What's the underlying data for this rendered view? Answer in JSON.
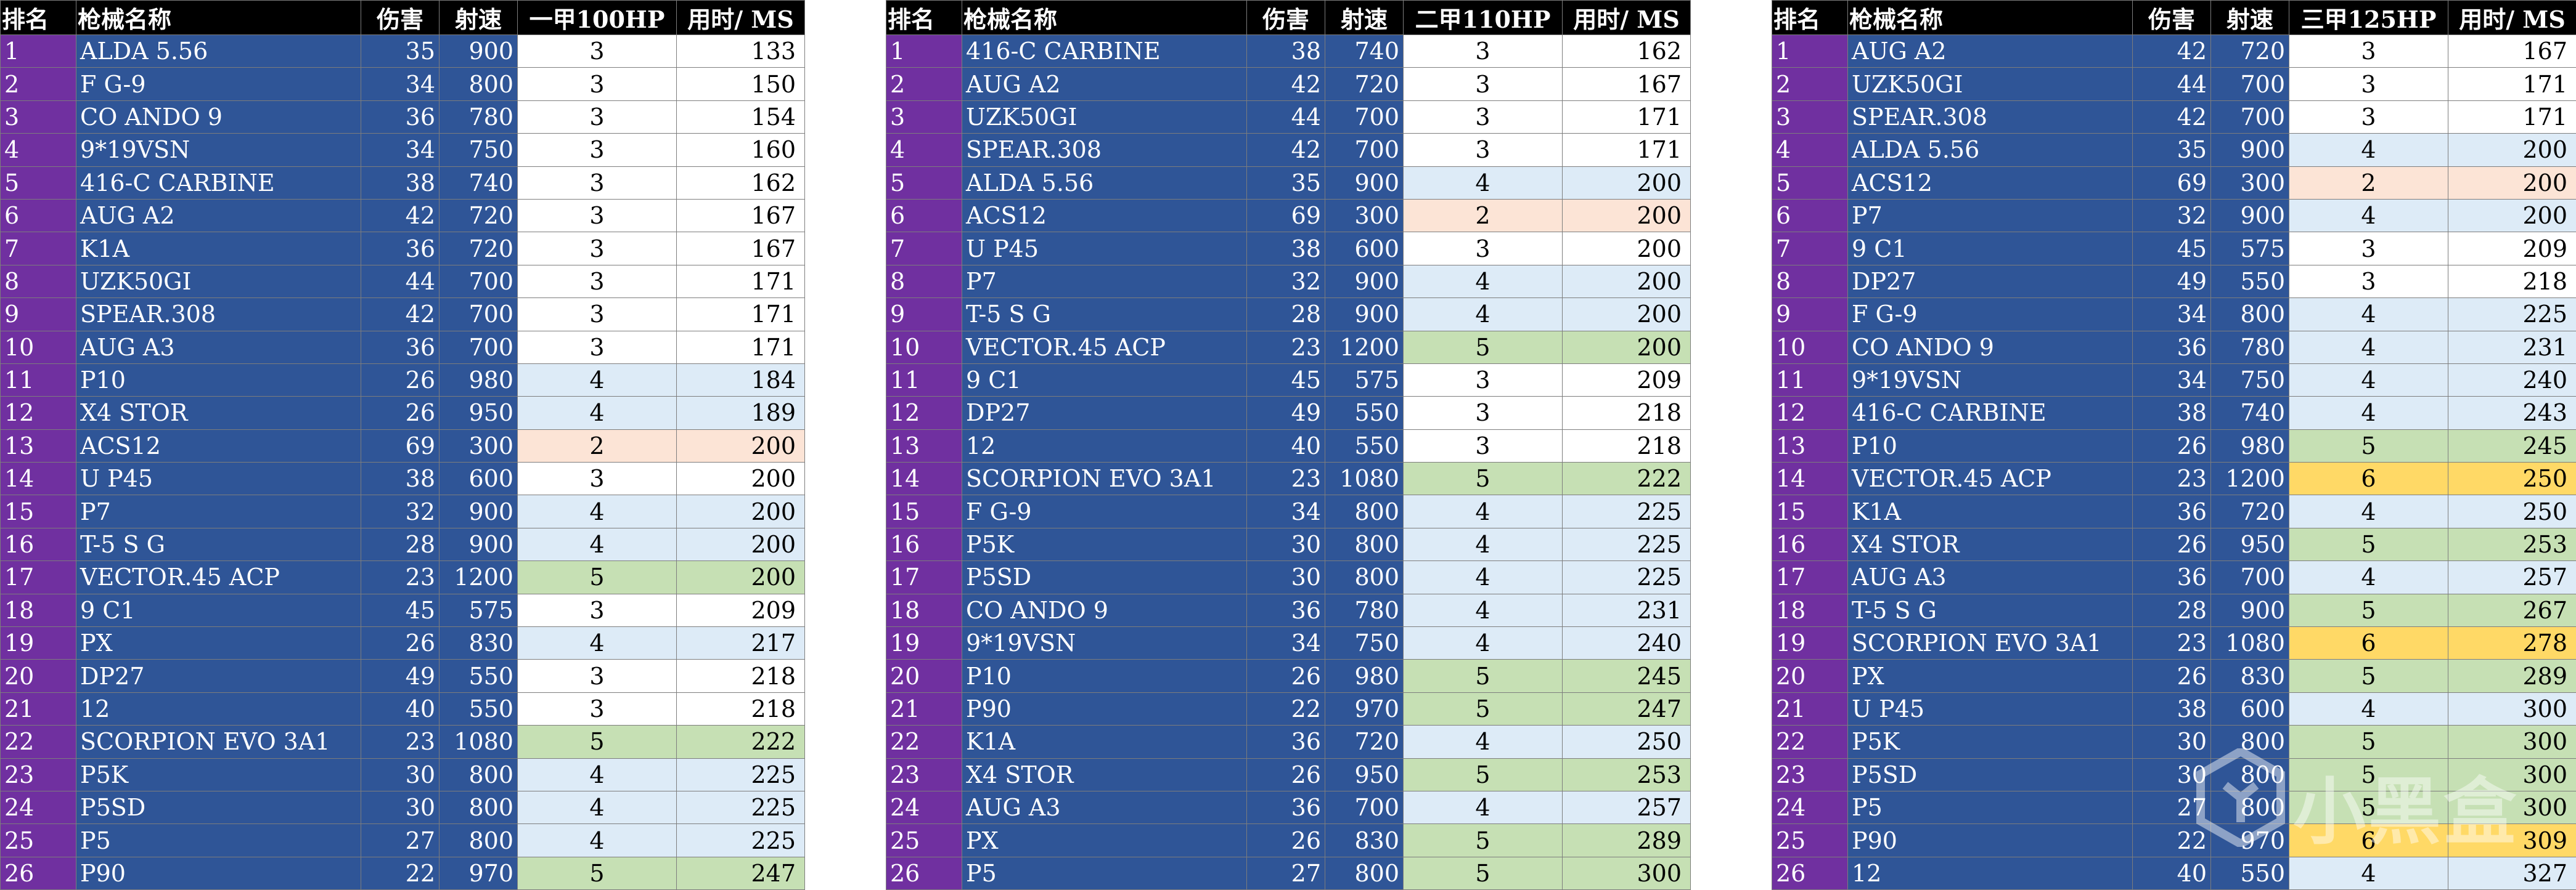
{
  "colors": {
    "header_bg": "#000000",
    "rank_bg": "#7030a0",
    "name_bg": "#2f5597",
    "hl_white": "#ffffff",
    "hl_blue": "#ddebf7",
    "hl_peach": "#fce4d6",
    "hl_green": "#c6e0b4",
    "hl_yellow": "#ffd966"
  },
  "tables": [
    {
      "headers": [
        "排名",
        "枪械名称",
        "伤害",
        "射速",
        "一甲100HP",
        "用时/ MS"
      ],
      "rows": [
        {
          "rank": "1",
          "name": "ALDA 5.56",
          "dmg": "35",
          "rpm": "900",
          "hits": "3",
          "time": "133",
          "hl": "white"
        },
        {
          "rank": "2",
          "name": "F G-9",
          "dmg": "34",
          "rpm": "800",
          "hits": "3",
          "time": "150",
          "hl": "white"
        },
        {
          "rank": "3",
          "name": "CO  ANDO 9",
          "dmg": "36",
          "rpm": "780",
          "hits": "3",
          "time": "154",
          "hl": "white"
        },
        {
          "rank": "4",
          "name": "9*19VSN",
          "dmg": "34",
          "rpm": "750",
          "hits": "3",
          "time": "160",
          "hl": "white"
        },
        {
          "rank": "5",
          "name": "416-C CARBINE",
          "dmg": "38",
          "rpm": "740",
          "hits": "3",
          "time": "162",
          "hl": "white"
        },
        {
          "rank": "6",
          "name": "AUG A2",
          "dmg": "42",
          "rpm": "720",
          "hits": "3",
          "time": "167",
          "hl": "white"
        },
        {
          "rank": "7",
          "name": "K1A",
          "dmg": "36",
          "rpm": "720",
          "hits": "3",
          "time": "167",
          "hl": "white"
        },
        {
          "rank": "8",
          "name": "UZK50GI",
          "dmg": "44",
          "rpm": "700",
          "hits": "3",
          "time": "171",
          "hl": "white"
        },
        {
          "rank": "9",
          "name": "SPEAR.308",
          "dmg": "42",
          "rpm": "700",
          "hits": "3",
          "time": "171",
          "hl": "white"
        },
        {
          "rank": "10",
          "name": "AUG A3",
          "dmg": "36",
          "rpm": "700",
          "hits": "3",
          "time": "171",
          "hl": "white"
        },
        {
          "rank": "11",
          "name": "P10",
          "dmg": "26",
          "rpm": "980",
          "hits": "4",
          "time": "184",
          "hl": "blue"
        },
        {
          "rank": "12",
          "name": " X4 STOR ",
          "dmg": "26",
          "rpm": "950",
          "hits": "4",
          "time": "189",
          "hl": "blue"
        },
        {
          "rank": "13",
          "name": " ACS12",
          "dmg": "69",
          "rpm": "300",
          "hits": "2",
          "time": "200",
          "hl": "peach"
        },
        {
          "rank": "14",
          "name": "U P45",
          "dmg": "38",
          "rpm": "600",
          "hits": "3",
          "time": "200",
          "hl": "white"
        },
        {
          "rank": "15",
          "name": " P7",
          "dmg": "32",
          "rpm": "900",
          "hits": "4",
          "time": "200",
          "hl": "blue"
        },
        {
          "rank": "16",
          "name": "T-5 S G",
          "dmg": "28",
          "rpm": "900",
          "hits": "4",
          "time": "200",
          "hl": "blue"
        },
        {
          "rank": "17",
          "name": "VECTOR.45 ACP",
          "dmg": "23",
          "rpm": "1200",
          "hits": "5",
          "time": "200",
          "hl": "green"
        },
        {
          "rank": "18",
          "name": "9  C1",
          "dmg": "45",
          "rpm": "575",
          "hits": "3",
          "time": "209",
          "hl": "white"
        },
        {
          "rank": "19",
          "name": " PX",
          "dmg": "26",
          "rpm": "830",
          "hits": "4",
          "time": "217",
          "hl": "blue"
        },
        {
          "rank": "20",
          "name": "DP27",
          "dmg": "49",
          "rpm": "550",
          "hits": "3",
          "time": "218",
          "hl": "white"
        },
        {
          "rank": "21",
          "name": " 12",
          "dmg": "40",
          "rpm": "550",
          "hits": "3",
          "time": "218",
          "hl": "white"
        },
        {
          "rank": "22",
          "name": "SCORPION EVO 3A1",
          "dmg": "23",
          "rpm": "1080",
          "hits": "5",
          "time": "222",
          "hl": "green"
        },
        {
          "rank": "23",
          "name": " P5K",
          "dmg": "30",
          "rpm": "800",
          "hits": "4",
          "time": "225",
          "hl": "blue"
        },
        {
          "rank": "24",
          "name": " P5SD",
          "dmg": "30",
          "rpm": "800",
          "hits": "4",
          "time": "225",
          "hl": "blue"
        },
        {
          "rank": "25",
          "name": " P5",
          "dmg": "27",
          "rpm": "800",
          "hits": "4",
          "time": "225",
          "hl": "blue"
        },
        {
          "rank": "26",
          "name": "P90",
          "dmg": "22",
          "rpm": "970",
          "hits": "5",
          "time": "247",
          "hl": "green"
        }
      ]
    },
    {
      "headers": [
        "排名",
        "枪械名称",
        "伤害",
        "射速",
        "二甲110HP",
        "用时/ MS"
      ],
      "rows": [
        {
          "rank": "1",
          "name": "416-C CARBINE",
          "dmg": "38",
          "rpm": "740",
          "hits": "3",
          "time": "162",
          "hl": "white"
        },
        {
          "rank": "2",
          "name": "AUG A2",
          "dmg": "42",
          "rpm": "720",
          "hits": "3",
          "time": "167",
          "hl": "white"
        },
        {
          "rank": "3",
          "name": "UZK50GI",
          "dmg": "44",
          "rpm": "700",
          "hits": "3",
          "time": "171",
          "hl": "white"
        },
        {
          "rank": "4",
          "name": "SPEAR.308",
          "dmg": "42",
          "rpm": "700",
          "hits": "3",
          "time": "171",
          "hl": "white"
        },
        {
          "rank": "5",
          "name": "ALDA 5.56",
          "dmg": "35",
          "rpm": "900",
          "hits": "4",
          "time": "200",
          "hl": "blue"
        },
        {
          "rank": "6",
          "name": "ACS12",
          "dmg": "69",
          "rpm": "300",
          "hits": "2",
          "time": "200",
          "hl": "peach"
        },
        {
          "rank": "7",
          "name": "U P45",
          "dmg": "38",
          "rpm": "600",
          "hits": "3",
          "time": "200",
          "hl": "white"
        },
        {
          "rank": "8",
          "name": " P7",
          "dmg": "32",
          "rpm": "900",
          "hits": "4",
          "time": "200",
          "hl": "blue"
        },
        {
          "rank": "9",
          "name": "T-5 S G",
          "dmg": "28",
          "rpm": "900",
          "hits": "4",
          "time": "200",
          "hl": "blue"
        },
        {
          "rank": "10",
          "name": "VECTOR.45 ACP",
          "dmg": "23",
          "rpm": "1200",
          "hits": "5",
          "time": "200",
          "hl": "green"
        },
        {
          "rank": "11",
          "name": "9  C1",
          "dmg": "45",
          "rpm": "575",
          "hits": "3",
          "time": "209",
          "hl": "white"
        },
        {
          "rank": "12",
          "name": "DP27",
          "dmg": "49",
          "rpm": "550",
          "hits": "3",
          "time": "218",
          "hl": "white"
        },
        {
          "rank": "13",
          "name": " 12",
          "dmg": "40",
          "rpm": "550",
          "hits": "3",
          "time": "218",
          "hl": "white"
        },
        {
          "rank": "14",
          "name": "SCORPION EVO 3A1",
          "dmg": "23",
          "rpm": "1080",
          "hits": "5",
          "time": "222",
          "hl": "green"
        },
        {
          "rank": "15",
          "name": "F G-9",
          "dmg": "34",
          "rpm": "800",
          "hits": "4",
          "time": "225",
          "hl": "blue"
        },
        {
          "rank": "16",
          "name": " P5K",
          "dmg": "30",
          "rpm": "800",
          "hits": "4",
          "time": "225",
          "hl": "blue"
        },
        {
          "rank": "17",
          "name": " P5SD",
          "dmg": "30",
          "rpm": "800",
          "hits": "4",
          "time": "225",
          "hl": "blue"
        },
        {
          "rank": "18",
          "name": "CO  ANDO 9",
          "dmg": "36",
          "rpm": "780",
          "hits": "4",
          "time": "231",
          "hl": "blue"
        },
        {
          "rank": "19",
          "name": "9*19VSN",
          "dmg": "34",
          "rpm": "750",
          "hits": "4",
          "time": "240",
          "hl": "blue"
        },
        {
          "rank": "20",
          "name": "P10",
          "dmg": "26",
          "rpm": "980",
          "hits": "5",
          "time": "245",
          "hl": "green"
        },
        {
          "rank": "21",
          "name": "P90",
          "dmg": "22",
          "rpm": "970",
          "hits": "5",
          "time": "247",
          "hl": "green"
        },
        {
          "rank": "22",
          "name": "K1A",
          "dmg": "36",
          "rpm": "720",
          "hits": "4",
          "time": "250",
          "hl": "blue"
        },
        {
          "rank": "23",
          "name": " X4 STOR ",
          "dmg": "26",
          "rpm": "950",
          "hits": "5",
          "time": "253",
          "hl": "green"
        },
        {
          "rank": "24",
          "name": "AUG A3",
          "dmg": "36",
          "rpm": "700",
          "hits": "4",
          "time": "257",
          "hl": "blue"
        },
        {
          "rank": "25",
          "name": " PX",
          "dmg": "26",
          "rpm": "830",
          "hits": "5",
          "time": "289",
          "hl": "green"
        },
        {
          "rank": "26",
          "name": " P5",
          "dmg": "27",
          "rpm": "800",
          "hits": "5",
          "time": "300",
          "hl": "green"
        }
      ]
    },
    {
      "headers": [
        "排名",
        "枪械名称",
        "伤害",
        "射速",
        "三甲125HP",
        "用时/ MS"
      ],
      "rows": [
        {
          "rank": "1",
          "name": "AUG A2",
          "dmg": "42",
          "rpm": "720",
          "hits": "3",
          "time": "167",
          "hl": "white"
        },
        {
          "rank": "2",
          "name": "UZK50GI",
          "dmg": "44",
          "rpm": "700",
          "hits": "3",
          "time": "171",
          "hl": "white"
        },
        {
          "rank": "3",
          "name": "SPEAR.308",
          "dmg": "42",
          "rpm": "700",
          "hits": "3",
          "time": "171",
          "hl": "white"
        },
        {
          "rank": "4",
          "name": "ALDA 5.56",
          "dmg": "35",
          "rpm": "900",
          "hits": "4",
          "time": "200",
          "hl": "blue"
        },
        {
          "rank": "5",
          "name": "ACS12",
          "dmg": "69",
          "rpm": "300",
          "hits": "2",
          "time": "200",
          "hl": "peach"
        },
        {
          "rank": "6",
          "name": " P7",
          "dmg": "32",
          "rpm": "900",
          "hits": "4",
          "time": "200",
          "hl": "blue"
        },
        {
          "rank": "7",
          "name": "9  C1",
          "dmg": "45",
          "rpm": "575",
          "hits": "3",
          "time": "209",
          "hl": "white"
        },
        {
          "rank": "8",
          "name": "DP27",
          "dmg": "49",
          "rpm": "550",
          "hits": "3",
          "time": "218",
          "hl": "white"
        },
        {
          "rank": "9",
          "name": "F G-9",
          "dmg": "34",
          "rpm": "800",
          "hits": "4",
          "time": "225",
          "hl": "blue"
        },
        {
          "rank": "10",
          "name": "CO  ANDO 9",
          "dmg": "36",
          "rpm": "780",
          "hits": "4",
          "time": "231",
          "hl": "blue"
        },
        {
          "rank": "11",
          "name": "9*19VSN",
          "dmg": "34",
          "rpm": "750",
          "hits": "4",
          "time": "240",
          "hl": "blue"
        },
        {
          "rank": "12",
          "name": "416-C CARBINE",
          "dmg": "38",
          "rpm": "740",
          "hits": "4",
          "time": "243",
          "hl": "blue"
        },
        {
          "rank": "13",
          "name": "P10",
          "dmg": "26",
          "rpm": "980",
          "hits": "5",
          "time": "245",
          "hl": "green"
        },
        {
          "rank": "14",
          "name": "VECTOR.45 ACP",
          "dmg": "23",
          "rpm": "1200",
          "hits": "6",
          "time": "250",
          "hl": "yellow"
        },
        {
          "rank": "15",
          "name": "K1A",
          "dmg": "36",
          "rpm": "720",
          "hits": "4",
          "time": "250",
          "hl": "blue"
        },
        {
          "rank": "16",
          "name": " X4 STOR ",
          "dmg": "26",
          "rpm": "950",
          "hits": "5",
          "time": "253",
          "hl": "green"
        },
        {
          "rank": "17",
          "name": "AUG A3",
          "dmg": "36",
          "rpm": "700",
          "hits": "4",
          "time": "257",
          "hl": "blue"
        },
        {
          "rank": "18",
          "name": "T-5 S G",
          "dmg": "28",
          "rpm": "900",
          "hits": "5",
          "time": "267",
          "hl": "green"
        },
        {
          "rank": "19",
          "name": "SCORPION EVO 3A1",
          "dmg": "23",
          "rpm": "1080",
          "hits": "6",
          "time": "278",
          "hl": "yellow"
        },
        {
          "rank": "20",
          "name": " PX",
          "dmg": "26",
          "rpm": "830",
          "hits": "5",
          "time": "289",
          "hl": "green"
        },
        {
          "rank": "21",
          "name": "U P45",
          "dmg": "38",
          "rpm": "600",
          "hits": "4",
          "time": "300",
          "hl": "blue"
        },
        {
          "rank": "22",
          "name": " P5K",
          "dmg": "30",
          "rpm": "800",
          "hits": "5",
          "time": "300",
          "hl": "green"
        },
        {
          "rank": "23",
          "name": " P5SD",
          "dmg": "30",
          "rpm": "800",
          "hits": "5",
          "time": "300",
          "hl": "green"
        },
        {
          "rank": "24",
          "name": " P5",
          "dmg": "27",
          "rpm": "800",
          "hits": "5",
          "time": "300",
          "hl": "green"
        },
        {
          "rank": "25",
          "name": "P90",
          "dmg": "22",
          "rpm": "970",
          "hits": "6",
          "time": "309",
          "hl": "yellow"
        },
        {
          "rank": "26",
          "name": " 12",
          "dmg": "40",
          "rpm": "550",
          "hits": "4",
          "time": "327",
          "hl": "blue"
        }
      ]
    }
  ],
  "watermark": {
    "text": "小黑盒",
    "icon": "heybox-logo-icon"
  }
}
